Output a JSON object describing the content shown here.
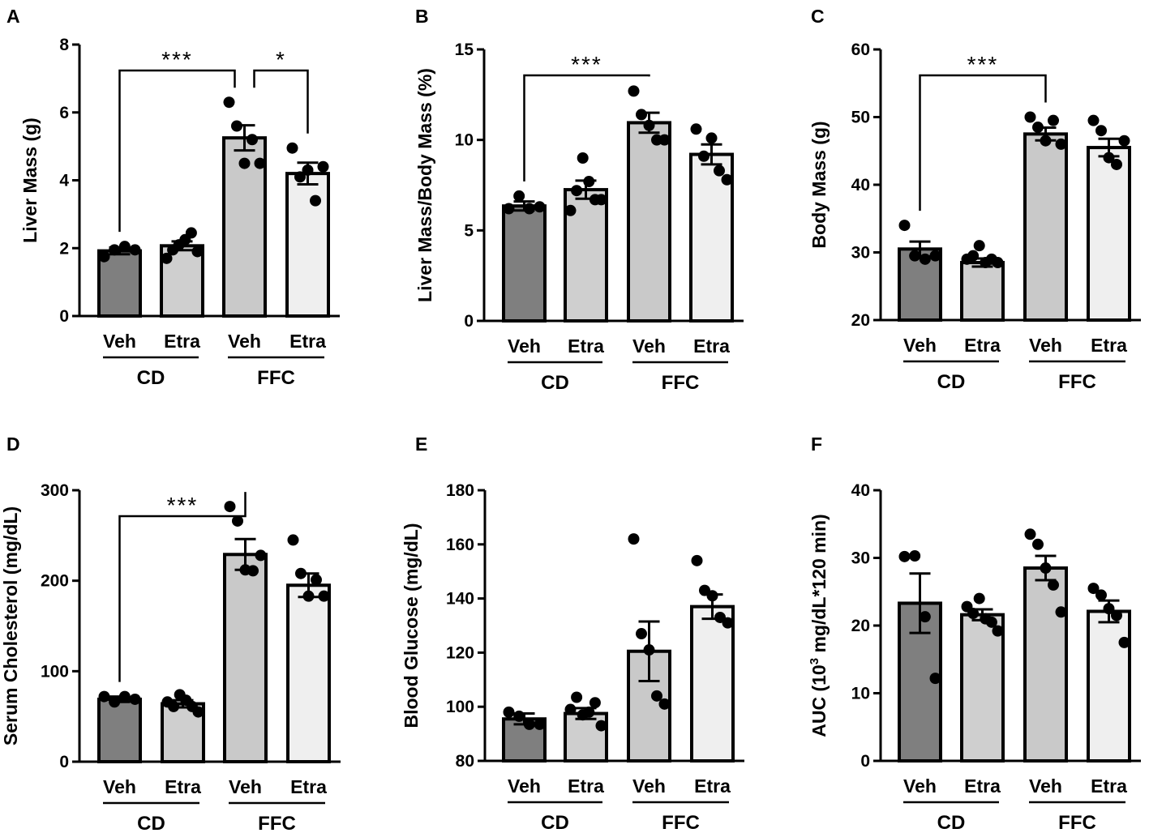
{
  "chart_data": [
    {
      "panel": "A",
      "type": "bar",
      "ylabel": "Liver Mass (g)",
      "ylim": [
        0,
        8
      ],
      "yticks": [
        0,
        2,
        4,
        6,
        8
      ],
      "categories": [
        "Veh",
        "Etra",
        "Veh",
        "Etra"
      ],
      "groups": [
        {
          "label": "CD",
          "members": [
            0,
            1
          ]
        },
        {
          "label": "FFC",
          "members": [
            2,
            3
          ]
        }
      ],
      "values": [
        1.92,
        2.07,
        5.25,
        4.2
      ],
      "sem": [
        0.1,
        0.13,
        0.37,
        0.32
      ],
      "points": [
        [
          1.75,
          1.95,
          2.05,
          1.95
        ],
        [
          1.7,
          1.95,
          2.1,
          2.25,
          2.45,
          1.9
        ],
        [
          6.3,
          5.6,
          4.5,
          5.2,
          4.5
        ],
        [
          4.95,
          4.1,
          4.3,
          3.4,
          4.4
        ]
      ],
      "significance": [
        {
          "from": 0,
          "to": 2,
          "label": "***"
        },
        {
          "from": 2,
          "to": 3,
          "label": "*"
        }
      ]
    },
    {
      "panel": "B",
      "type": "bar",
      "ylabel": "Liver Mass/Body Mass (%)",
      "ylim": [
        0,
        15
      ],
      "yticks": [
        0,
        5,
        10,
        15
      ],
      "categories": [
        "Veh",
        "Etra",
        "Veh",
        "Etra"
      ],
      "groups": [
        {
          "label": "CD",
          "members": [
            0,
            1
          ]
        },
        {
          "label": "FFC",
          "members": [
            2,
            3
          ]
        }
      ],
      "values": [
        6.35,
        7.25,
        10.95,
        9.2
      ],
      "sem": [
        0.25,
        0.5,
        0.55,
        0.55
      ],
      "points": [
        [
          6.2,
          6.9,
          6.2,
          6.3
        ],
        [
          6.1,
          7.2,
          9.0,
          7.7,
          6.7,
          6.7
        ],
        [
          12.7,
          11.4,
          10.8,
          10.0,
          10.0
        ],
        [
          10.6,
          9.1,
          10.1,
          8.3,
          7.8
        ]
      ],
      "significance": [
        {
          "from": 0,
          "to": 2,
          "label": "***"
        }
      ]
    },
    {
      "panel": "C",
      "type": "bar",
      "ylabel": "Body Mass (g)",
      "ylim": [
        20,
        60
      ],
      "yticks": [
        20,
        30,
        40,
        50,
        60
      ],
      "categories": [
        "Veh",
        "Etra",
        "Veh",
        "Etra"
      ],
      "groups": [
        {
          "label": "CD",
          "members": [
            0,
            1
          ]
        },
        {
          "label": "FFC",
          "members": [
            2,
            3
          ]
        }
      ],
      "values": [
        30.5,
        28.5,
        47.5,
        45.5
      ],
      "sem": [
        1.1,
        0.6,
        0.95,
        1.3
      ],
      "points": [
        [
          34.0,
          29.5,
          29.0,
          29.5
        ],
        [
          29.0,
          29.5,
          31.0,
          28.5,
          29.0,
          28.5
        ],
        [
          50.0,
          48.5,
          46.5,
          49.5,
          46.0
        ],
        [
          49.5,
          48.0,
          44.0,
          43.0,
          46.5
        ]
      ],
      "significance": [
        {
          "from": 0,
          "to": 2,
          "label": "***"
        }
      ]
    },
    {
      "panel": "D",
      "type": "bar",
      "ylabel": "Serum Cholesterol (mg/dL)",
      "ylim": [
        0,
        300
      ],
      "yticks": [
        0,
        100,
        200,
        300
      ],
      "categories": [
        "Veh",
        "Etra",
        "Veh",
        "Etra"
      ],
      "groups": [
        {
          "label": "CD",
          "members": [
            0,
            1
          ]
        },
        {
          "label": "FFC",
          "members": [
            2,
            3
          ]
        }
      ],
      "values": [
        69,
        64,
        229,
        195
      ],
      "sem": [
        3,
        4,
        17,
        13
      ],
      "points": [
        [
          72,
          66,
          72,
          69
        ],
        [
          66,
          61,
          74,
          68,
          61,
          55
        ],
        [
          282,
          266,
          212,
          211,
          228
        ],
        [
          245,
          208,
          183,
          201,
          183
        ]
      ],
      "significance": [
        {
          "from": 0,
          "to": 2,
          "label": "***"
        }
      ]
    },
    {
      "panel": "E",
      "type": "bar",
      "ylabel": "Blood Glucose (mg/dL)",
      "ylim": [
        80,
        180
      ],
      "yticks": [
        80,
        100,
        120,
        140,
        160,
        180
      ],
      "categories": [
        "Veh",
        "Etra",
        "Veh",
        "Etra"
      ],
      "groups": [
        {
          "label": "CD",
          "members": [
            0,
            1
          ]
        },
        {
          "label": "FFC",
          "members": [
            2,
            3
          ]
        }
      ],
      "values": [
        95.5,
        97.5,
        120.5,
        137
      ],
      "sem": [
        2,
        2,
        11,
        4.5
      ],
      "points": [
        [
          98,
          96.5,
          93.5,
          93.5
        ],
        [
          99,
          103.5,
          97,
          98,
          101.5,
          93
        ],
        [
          162,
          127,
          121,
          104,
          101
        ],
        [
          154,
          143,
          141,
          133,
          131
        ]
      ],
      "significance": []
    },
    {
      "panel": "F",
      "type": "bar",
      "ylabel": "AUC (10",
      "ylabel_sup": "3",
      "ylabel_rest": " mg/dL*120 min)",
      "ylim": [
        0,
        40
      ],
      "yticks": [
        0,
        10,
        20,
        30,
        40
      ],
      "categories": [
        "Veh",
        "Etra",
        "Veh",
        "Etra"
      ],
      "groups": [
        {
          "label": "CD",
          "members": [
            0,
            1
          ]
        },
        {
          "label": "FFC",
          "members": [
            2,
            3
          ]
        }
      ],
      "values": [
        23.3,
        21.6,
        28.5,
        22.1
      ],
      "sem": [
        4.4,
        0.8,
        1.8,
        1.6
      ],
      "points": [
        [
          30.2,
          30.3,
          21.3,
          12.2
        ],
        [
          22.8,
          21.8,
          24.0,
          21.0,
          20.5,
          19.2
        ],
        [
          33.5,
          32.0,
          28.5,
          26.0,
          22.0
        ],
        [
          25.5,
          24.5,
          22.5,
          21.5,
          17.5
        ]
      ],
      "significance": []
    }
  ],
  "colors": {
    "bar_fills": [
      "#7f7f7f",
      "#cfcfcf",
      "#c9c9c9",
      "#efefef"
    ],
    "ink": "#000000"
  }
}
